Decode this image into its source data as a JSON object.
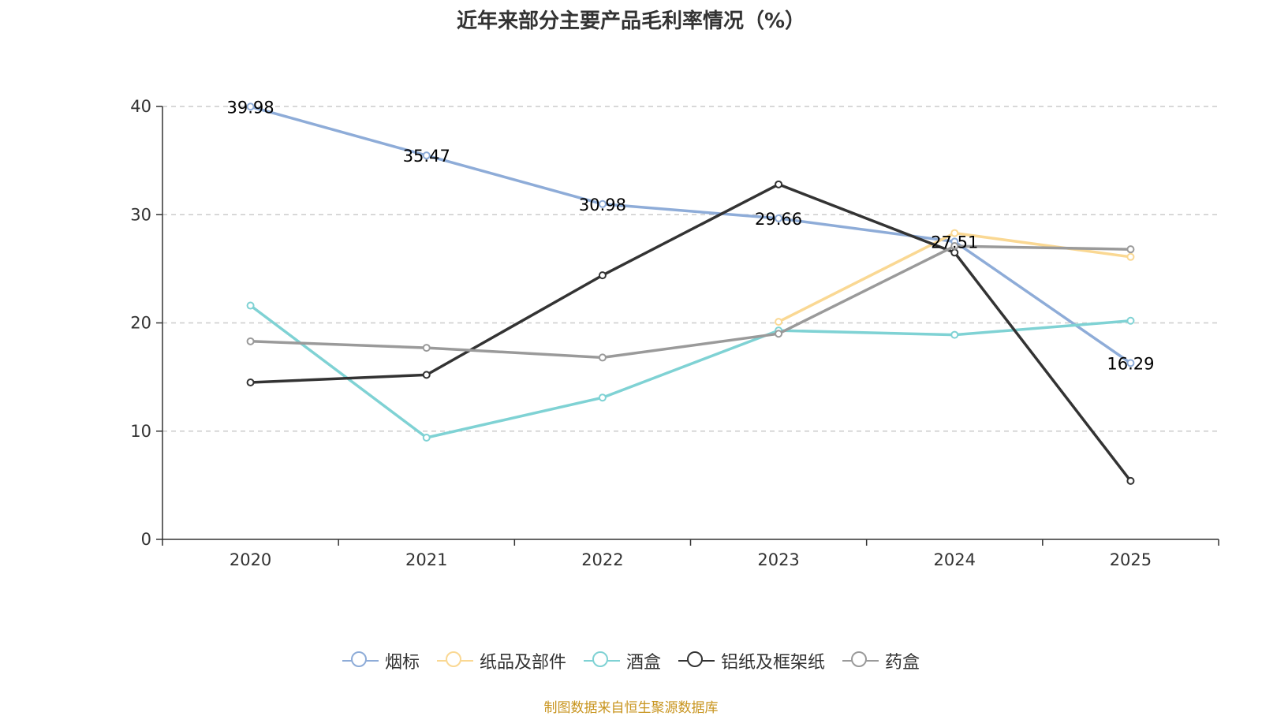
{
  "chart_data": {
    "type": "line",
    "title": "近年来部分主要产品毛利率情况（%）",
    "categories": [
      "2020",
      "2021",
      "2022",
      "2023",
      "2024",
      "2025"
    ],
    "ylim": [
      0,
      40
    ],
    "yticks": [
      0,
      10,
      20,
      30,
      40
    ],
    "grid": true,
    "legend_position": "bottom",
    "series": [
      {
        "name": "烟标",
        "color": "#8eacd8",
        "values": [
          39.98,
          35.47,
          30.98,
          29.66,
          27.51,
          16.29
        ],
        "show_labels": true
      },
      {
        "name": "纸品及部件",
        "color": "#fad893",
        "values": [
          null,
          null,
          null,
          20.1,
          28.3,
          26.1
        ],
        "show_labels": false
      },
      {
        "name": "酒盒",
        "color": "#7fd2d4",
        "values": [
          21.6,
          9.4,
          13.1,
          19.3,
          18.9,
          20.2
        ],
        "show_labels": false
      },
      {
        "name": "铝纸及框架纸",
        "color": "#333333",
        "values": [
          14.5,
          15.2,
          24.4,
          32.8,
          26.5,
          5.4
        ],
        "show_labels": false
      },
      {
        "name": "药盒",
        "color": "#9a9a9a",
        "values": [
          18.3,
          17.7,
          16.8,
          19.0,
          27.1,
          26.8
        ],
        "show_labels": false
      }
    ]
  },
  "source_note": "制图数据来自恒生聚源数据库"
}
